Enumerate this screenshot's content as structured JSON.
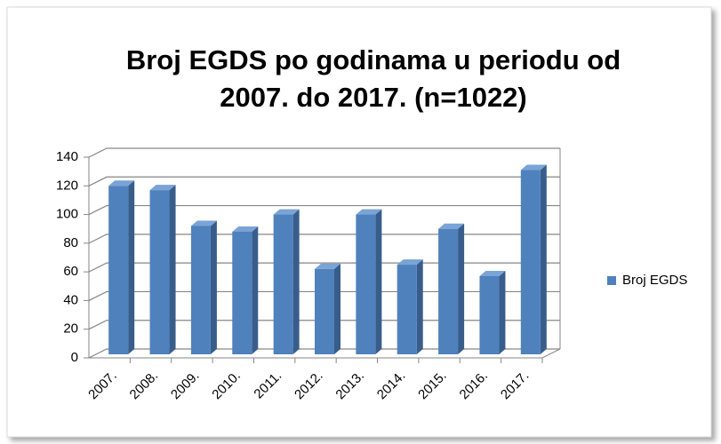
{
  "chart_data": {
    "type": "bar3d",
    "title": [
      "Broj EGDS po godinama u periodu od",
      "2007. do 2017. (n=1022)"
    ],
    "categories": [
      "2007.",
      "2008.",
      "2009.",
      "2010.",
      "2011.",
      "2012.",
      "2013.",
      "2014.",
      "2015.",
      "2016.",
      "2017."
    ],
    "series": [
      {
        "name": "Broj EGDS",
        "color": "#4f81bd",
        "values": [
          120,
          117,
          92,
          88,
          100,
          62,
          100,
          65,
          90,
          57,
          131
        ]
      }
    ],
    "ylim": [
      0,
      140
    ],
    "yticks": [
      0,
      20,
      40,
      60,
      80,
      100,
      120,
      140
    ],
    "grid": true,
    "legend": "right"
  }
}
